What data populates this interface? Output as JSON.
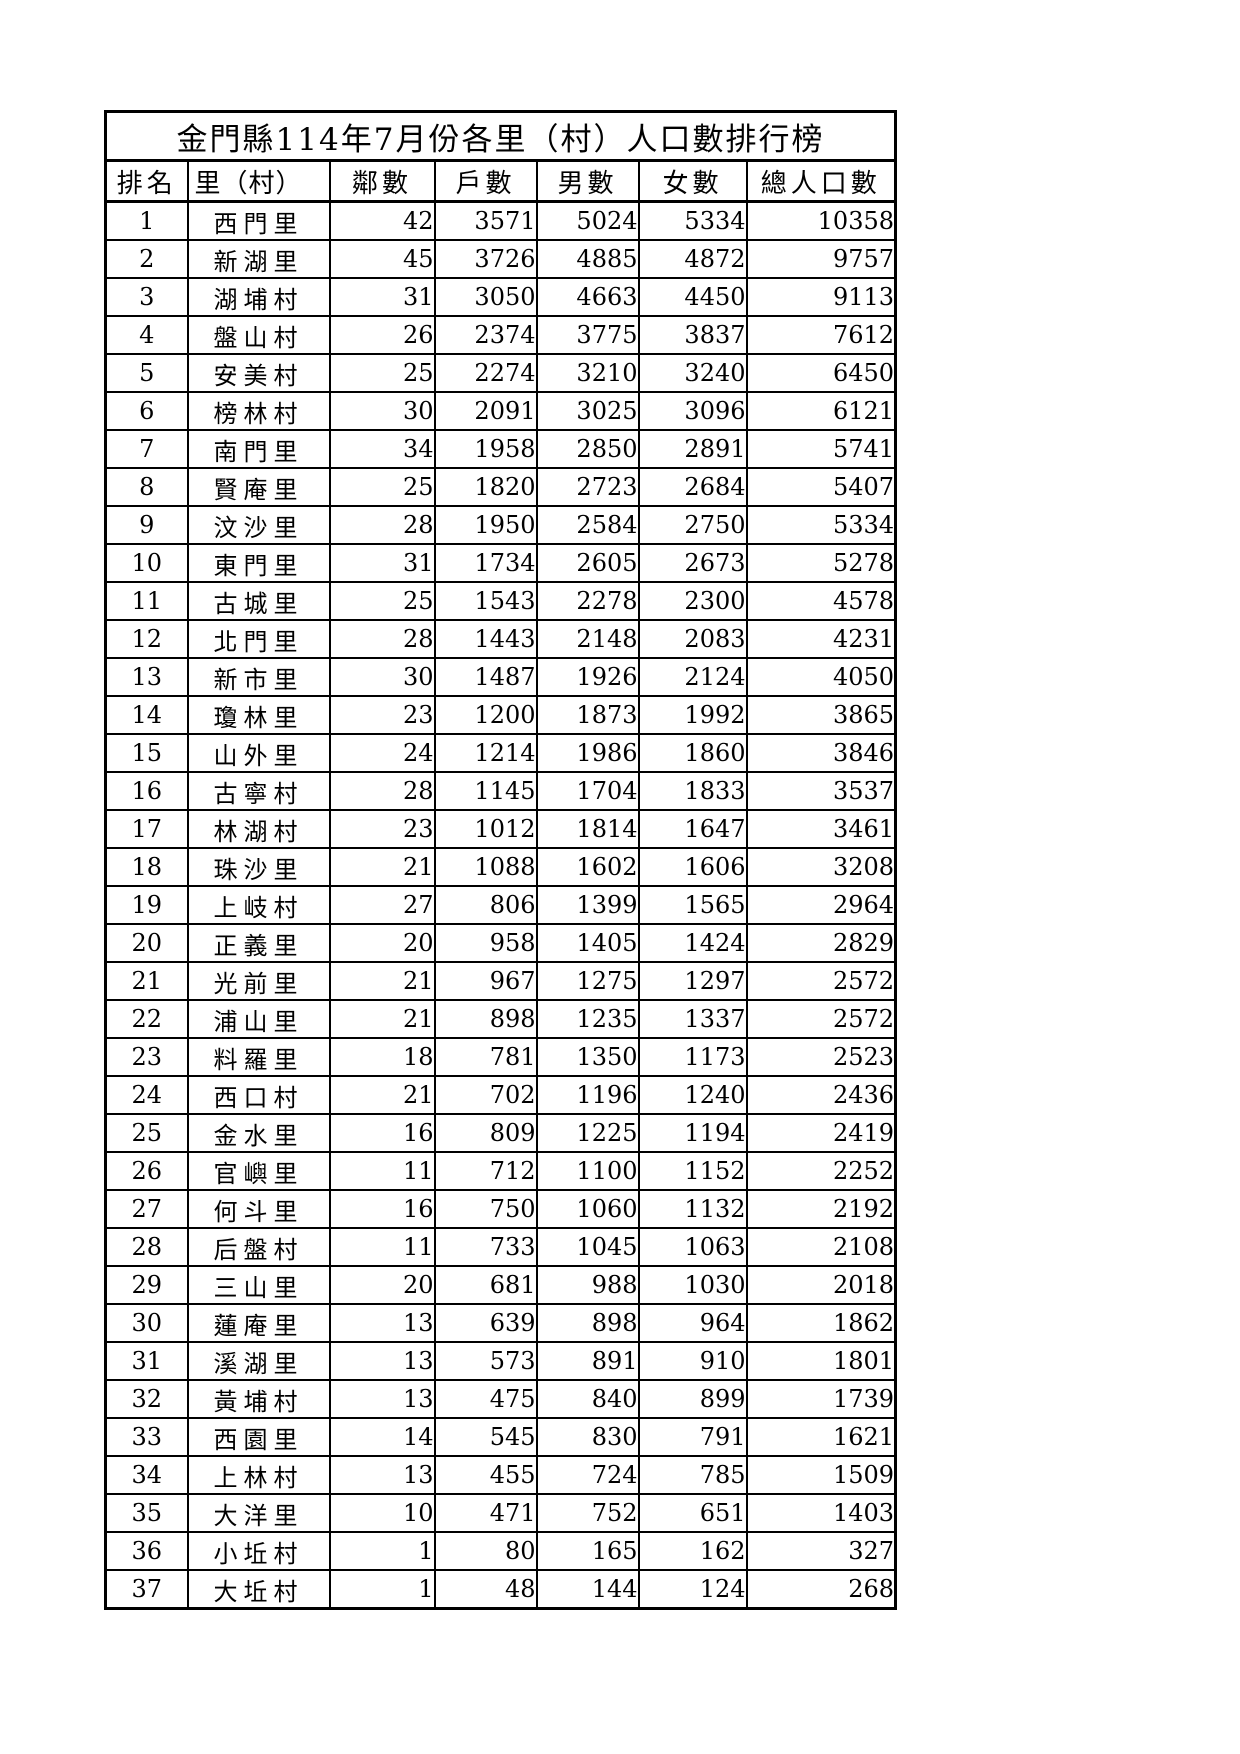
{
  "doc": {
    "title": "金門縣114年7月份各里（村）人口數排行榜"
  },
  "table": {
    "headers": [
      "排名",
      "里（村）",
      "鄰數",
      "戶數",
      "男數",
      "女數",
      "總人口數"
    ],
    "rows": [
      [
        1,
        "西門里",
        42,
        3571,
        5024,
        5334,
        10358
      ],
      [
        2,
        "新湖里",
        45,
        3726,
        4885,
        4872,
        9757
      ],
      [
        3,
        "湖埔村",
        31,
        3050,
        4663,
        4450,
        9113
      ],
      [
        4,
        "盤山村",
        26,
        2374,
        3775,
        3837,
        7612
      ],
      [
        5,
        "安美村",
        25,
        2274,
        3210,
        3240,
        6450
      ],
      [
        6,
        "榜林村",
        30,
        2091,
        3025,
        3096,
        6121
      ],
      [
        7,
        "南門里",
        34,
        1958,
        2850,
        2891,
        5741
      ],
      [
        8,
        "賢庵里",
        25,
        1820,
        2723,
        2684,
        5407
      ],
      [
        9,
        "汶沙里",
        28,
        1950,
        2584,
        2750,
        5334
      ],
      [
        10,
        "東門里",
        31,
        1734,
        2605,
        2673,
        5278
      ],
      [
        11,
        "古城里",
        25,
        1543,
        2278,
        2300,
        4578
      ],
      [
        12,
        "北門里",
        28,
        1443,
        2148,
        2083,
        4231
      ],
      [
        13,
        "新市里",
        30,
        1487,
        1926,
        2124,
        4050
      ],
      [
        14,
        "瓊林里",
        23,
        1200,
        1873,
        1992,
        3865
      ],
      [
        15,
        "山外里",
        24,
        1214,
        1986,
        1860,
        3846
      ],
      [
        16,
        "古寧村",
        28,
        1145,
        1704,
        1833,
        3537
      ],
      [
        17,
        "林湖村",
        23,
        1012,
        1814,
        1647,
        3461
      ],
      [
        18,
        "珠沙里",
        21,
        1088,
        1602,
        1606,
        3208
      ],
      [
        19,
        "上岐村",
        27,
        806,
        1399,
        1565,
        2964
      ],
      [
        20,
        "正義里",
        20,
        958,
        1405,
        1424,
        2829
      ],
      [
        21,
        "光前里",
        21,
        967,
        1275,
        1297,
        2572
      ],
      [
        22,
        "浦山里",
        21,
        898,
        1235,
        1337,
        2572
      ],
      [
        23,
        "料羅里",
        18,
        781,
        1350,
        1173,
        2523
      ],
      [
        24,
        "西口村",
        21,
        702,
        1196,
        1240,
        2436
      ],
      [
        25,
        "金水里",
        16,
        809,
        1225,
        1194,
        2419
      ],
      [
        26,
        "官嶼里",
        11,
        712,
        1100,
        1152,
        2252
      ],
      [
        27,
        "何斗里",
        16,
        750,
        1060,
        1132,
        2192
      ],
      [
        28,
        "后盤村",
        11,
        733,
        1045,
        1063,
        2108
      ],
      [
        29,
        "三山里",
        20,
        681,
        988,
        1030,
        2018
      ],
      [
        30,
        "蓮庵里",
        13,
        639,
        898,
        964,
        1862
      ],
      [
        31,
        "溪湖里",
        13,
        573,
        891,
        910,
        1801
      ],
      [
        32,
        "黃埔村",
        13,
        475,
        840,
        899,
        1739
      ],
      [
        33,
        "西園里",
        14,
        545,
        830,
        791,
        1621
      ],
      [
        34,
        "上林村",
        13,
        455,
        724,
        785,
        1509
      ],
      [
        35,
        "大洋里",
        10,
        471,
        752,
        651,
        1403
      ],
      [
        36,
        "小坵村",
        1,
        80,
        165,
        162,
        327
      ],
      [
        37,
        "大坵村",
        1,
        48,
        144,
        124,
        268
      ]
    ]
  }
}
